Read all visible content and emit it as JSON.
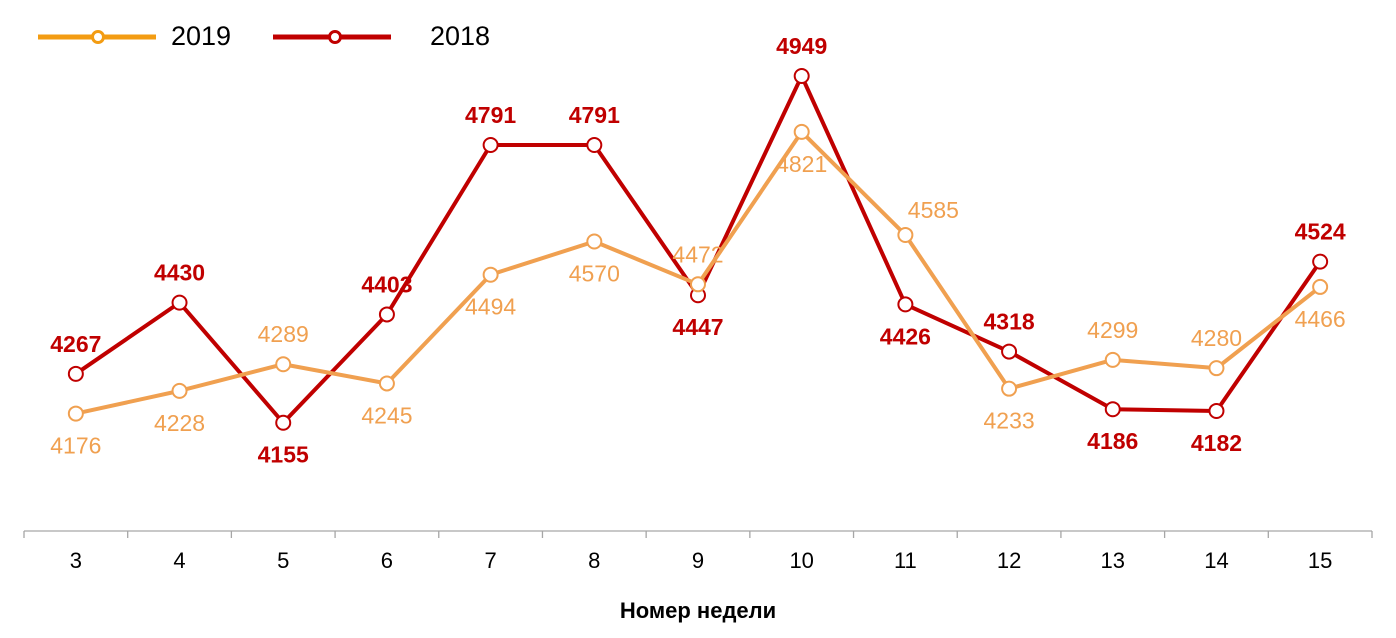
{
  "chart_data": {
    "type": "line",
    "title": "",
    "xlabel": "Номер недели",
    "ylabel": "",
    "categories": [
      "3",
      "4",
      "5",
      "6",
      "7",
      "8",
      "9",
      "10",
      "11",
      "12",
      "13",
      "14",
      "15"
    ],
    "series": [
      {
        "name": "2019",
        "color": "#F0A050",
        "legend_color": "#F39C12",
        "values": [
          4176,
          4228,
          4289,
          4245,
          4494,
          4570,
          4472,
          4821,
          4585,
          4233,
          4299,
          4280,
          4466
        ],
        "label_pos": [
          "below",
          "below",
          "above",
          "below",
          "below",
          "below",
          "above",
          "below",
          "above-right",
          "below",
          "above",
          "above",
          "below"
        ]
      },
      {
        "name": "2018",
        "color": "#C00000",
        "legend_color": "#C00000",
        "values": [
          4267,
          4430,
          4155,
          4403,
          4791,
          4791,
          4447,
          4949,
          4426,
          4318,
          4186,
          4182,
          4524
        ],
        "label_pos": [
          "above",
          "above",
          "below",
          "above",
          "above",
          "above",
          "below",
          "above",
          "below",
          "above",
          "below",
          "below",
          "above"
        ]
      }
    ],
    "ylim": [
      3907,
      4949
    ],
    "grid": false,
    "legend_position": "top-left",
    "data_labels": true
  },
  "legend": {
    "items": [
      {
        "label": "2019"
      },
      {
        "label": "2018"
      }
    ]
  },
  "axis": {
    "x_title": "Номер недели"
  }
}
